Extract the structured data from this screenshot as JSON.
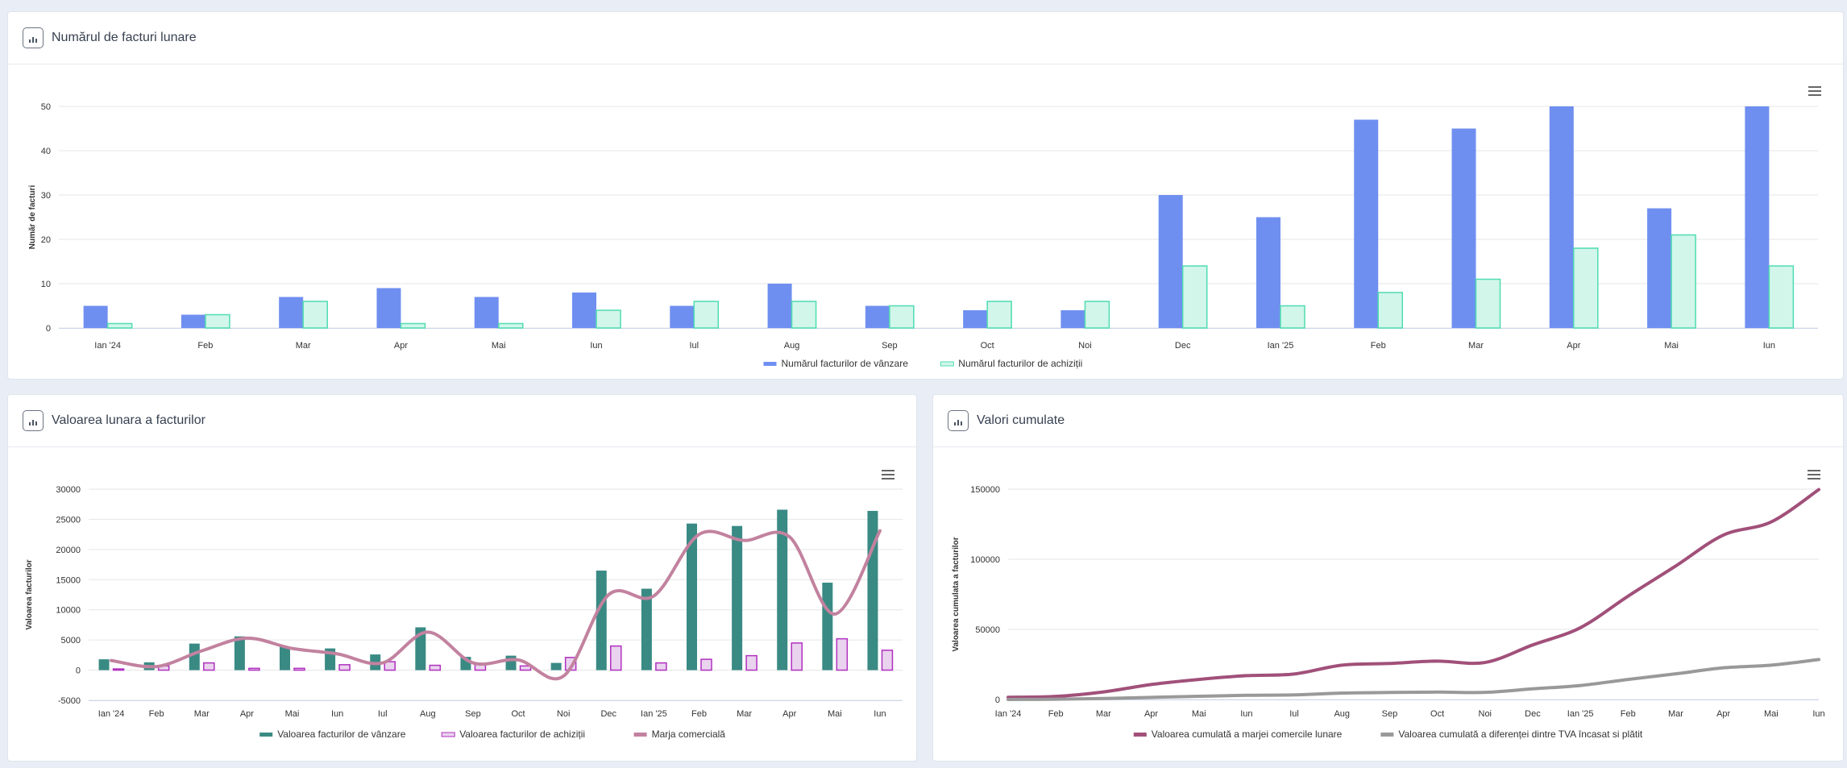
{
  "cards": {
    "top": {
      "title": "Numărul de facturi lunare"
    },
    "bottom_left": {
      "title": "Valoarea lunara a facturilor"
    },
    "bottom_right": {
      "title": "Valori cumulate"
    }
  },
  "icons": {
    "chart": "bar-chart-icon",
    "menu": "hamburger-menu-icon"
  },
  "chart_data": [
    {
      "type": "bar",
      "categories": [
        "Ian '24",
        "Feb",
        "Mar",
        "Apr",
        "Mai",
        "Iun",
        "Iul",
        "Aug",
        "Sep",
        "Oct",
        "Noi",
        "Dec",
        "Ian '25",
        "Feb",
        "Mar",
        "Apr",
        "Mai",
        "Iun"
      ],
      "ylabel": "Număr de facturi",
      "ylim": [
        0,
        50
      ],
      "yticks": [
        0,
        10,
        20,
        30,
        40,
        50
      ],
      "grid": true,
      "legend_position": "bottom-center",
      "series": [
        {
          "name": "Numărul facturilor de vânzare",
          "color": "#6f8ff0",
          "values": [
            5,
            3,
            7,
            9,
            7,
            8,
            5,
            10,
            5,
            4,
            4,
            30,
            25,
            47,
            45,
            50,
            27,
            50
          ]
        },
        {
          "name": "Numărul facturilor de achiziții",
          "color": "#d2f6ea",
          "stroke": "#4fdcb1",
          "values": [
            1,
            3,
            6,
            1,
            1,
            4,
            6,
            6,
            5,
            6,
            6,
            14,
            5,
            8,
            11,
            18,
            21,
            14
          ]
        }
      ]
    },
    {
      "type": "bar",
      "categories": [
        "Ian '24",
        "Feb",
        "Mar",
        "Apr",
        "Mai",
        "Iun",
        "Iul",
        "Aug",
        "Sep",
        "Oct",
        "Noi",
        "Dec",
        "Ian '25",
        "Feb",
        "Mar",
        "Apr",
        "Mai",
        "Iun"
      ],
      "ylabel": "Valoarea facturilor",
      "ylim": [
        -5000,
        30000
      ],
      "yticks": [
        -5000,
        0,
        5000,
        10000,
        15000,
        20000,
        25000,
        30000
      ],
      "grid": true,
      "legend_position": "bottom-center",
      "series": [
        {
          "name": "Valoarea facturilor de vânzare",
          "type": "bar",
          "color": "#3a8a84",
          "values": [
            1800,
            1300,
            4400,
            5600,
            3900,
            3600,
            2600,
            7100,
            2200,
            2400,
            1200,
            16500,
            13500,
            24300,
            23900,
            26600,
            14500,
            26400
          ]
        },
        {
          "name": "Valoarea facturilor de achiziții",
          "type": "bar",
          "color": "#ead3ee",
          "stroke": "#b030c0",
          "values": [
            200,
            700,
            1200,
            300,
            300,
            900,
            1400,
            800,
            1000,
            700,
            2100,
            4000,
            1200,
            1800,
            2400,
            4500,
            5200,
            3300
          ]
        },
        {
          "name": "Marja comercială",
          "type": "spline",
          "color": "#c2829f",
          "values": [
            1600,
            600,
            3200,
            5300,
            3600,
            2700,
            1200,
            6300,
            1200,
            1700,
            -1000,
            12500,
            12300,
            22500,
            21500,
            22100,
            9300,
            23100
          ]
        }
      ]
    },
    {
      "type": "line",
      "categories": [
        "Ian '24",
        "Feb",
        "Mar",
        "Apr",
        "Mai",
        "Iun",
        "Iul",
        "Aug",
        "Sep",
        "Oct",
        "Noi",
        "Dec",
        "Ian '25",
        "Feb",
        "Mar",
        "Apr",
        "Mai",
        "Iun"
      ],
      "ylabel": "Valoarea cumulata a facturilor",
      "ylim": [
        0,
        150000
      ],
      "yticks": [
        0,
        50000,
        100000,
        150000
      ],
      "grid": true,
      "legend_position": "bottom-center",
      "series": [
        {
          "name": "Valoarea cumulată a marjei comercile lunare",
          "color": "#a1507a",
          "values": [
            1600,
            2200,
            5400,
            10700,
            14300,
            17000,
            18200,
            24500,
            25700,
            27400,
            26400,
            38900,
            51200,
            73700,
            95200,
            117300,
            126600,
            149700
          ]
        },
        {
          "name": "Valoarea cumulată a diferenței dintre TVA încasat si plătit",
          "color": "#999999",
          "values": [
            0,
            200,
            700,
            1500,
            2300,
            3000,
            3300,
            4600,
            5000,
            5300,
            5100,
            7600,
            10000,
            14300,
            18300,
            22600,
            24500,
            28500
          ]
        }
      ]
    }
  ]
}
